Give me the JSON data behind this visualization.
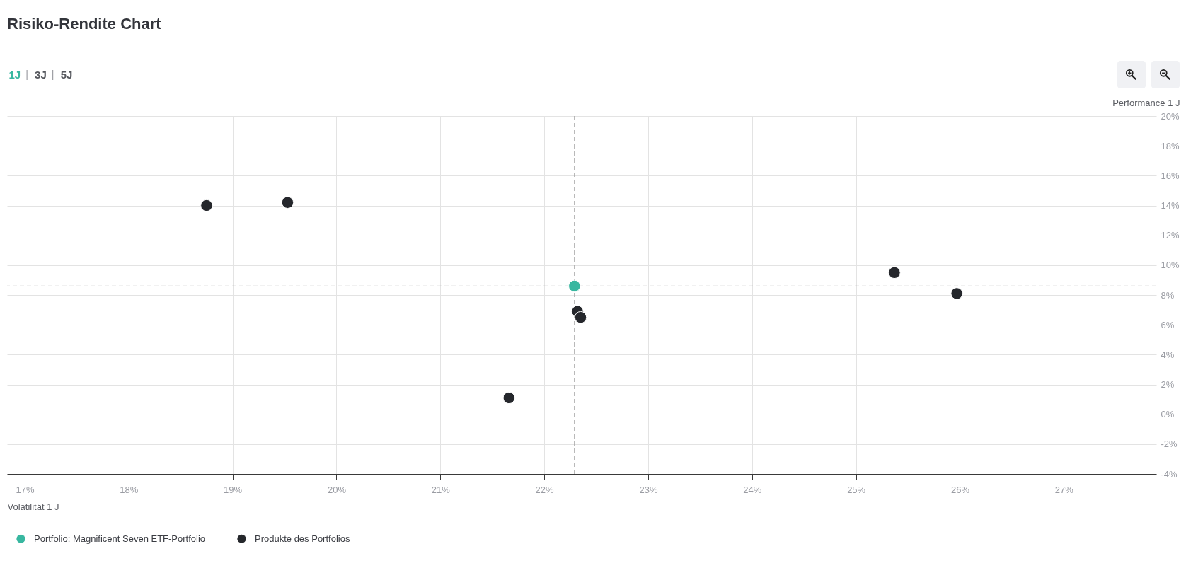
{
  "chart_data": {
    "type": "scatter",
    "title": "Risiko-Rendite Chart",
    "xlabel": "Volatilität 1 J",
    "ylabel": "Performance 1 J",
    "annotations": [
      "1J",
      "3J",
      "5J"
    ],
    "series": [
      {
        "name": "Portfolio: Magnificent Seven ETF-Portfolio",
        "color": "#38b7a0",
        "x": [
          22.29
        ],
        "values": [
          8.6
        ]
      },
      {
        "name": "Produkte des Portfolios",
        "color": "#25272c",
        "x": [
          18.75,
          19.53,
          22.32,
          22.35,
          21.66,
          25.37,
          25.97
        ],
        "values": [
          14.0,
          14.2,
          6.9,
          6.5,
          1.1,
          9.5,
          8.1
        ]
      }
    ],
    "xlim": [
      16.83,
      27.89
    ],
    "ylim": [
      -4,
      20
    ],
    "xticks": [
      {
        "value": 17,
        "label": "17%"
      },
      {
        "value": 18,
        "label": "18%"
      },
      {
        "value": 19,
        "label": "19%"
      },
      {
        "value": 20,
        "label": "20%"
      },
      {
        "value": 21,
        "label": "21%"
      },
      {
        "value": 22,
        "label": "22%"
      },
      {
        "value": 23,
        "label": "23%"
      },
      {
        "value": 24,
        "label": "24%"
      },
      {
        "value": 25,
        "label": "25%"
      },
      {
        "value": 26,
        "label": "26%"
      },
      {
        "value": 27,
        "label": "27%"
      }
    ],
    "yticks": [
      {
        "value": -4,
        "label": "-4%"
      },
      {
        "value": -2,
        "label": "-2%"
      },
      {
        "value": 0,
        "label": "0%"
      },
      {
        "value": 2,
        "label": "2%"
      },
      {
        "value": 4,
        "label": "4%"
      },
      {
        "value": 6,
        "label": "6%"
      },
      {
        "value": 8,
        "label": "8%"
      },
      {
        "value": 10,
        "label": "10%"
      },
      {
        "value": 12,
        "label": "12%"
      },
      {
        "value": 14,
        "label": "14%"
      },
      {
        "value": 16,
        "label": "16%"
      },
      {
        "value": 18,
        "label": "18%"
      },
      {
        "value": 20,
        "label": "20%"
      }
    ],
    "ref_lines": [
      {
        "axis": "x",
        "value": 22.29,
        "color": "#a6a6a6",
        "line_style": "dashed"
      },
      {
        "axis": "y",
        "value": 8.6,
        "color": "#a6a6a6",
        "line_style": "dashed"
      }
    ],
    "grid": true,
    "legend": "bottom left",
    "marker": "circle"
  }
}
